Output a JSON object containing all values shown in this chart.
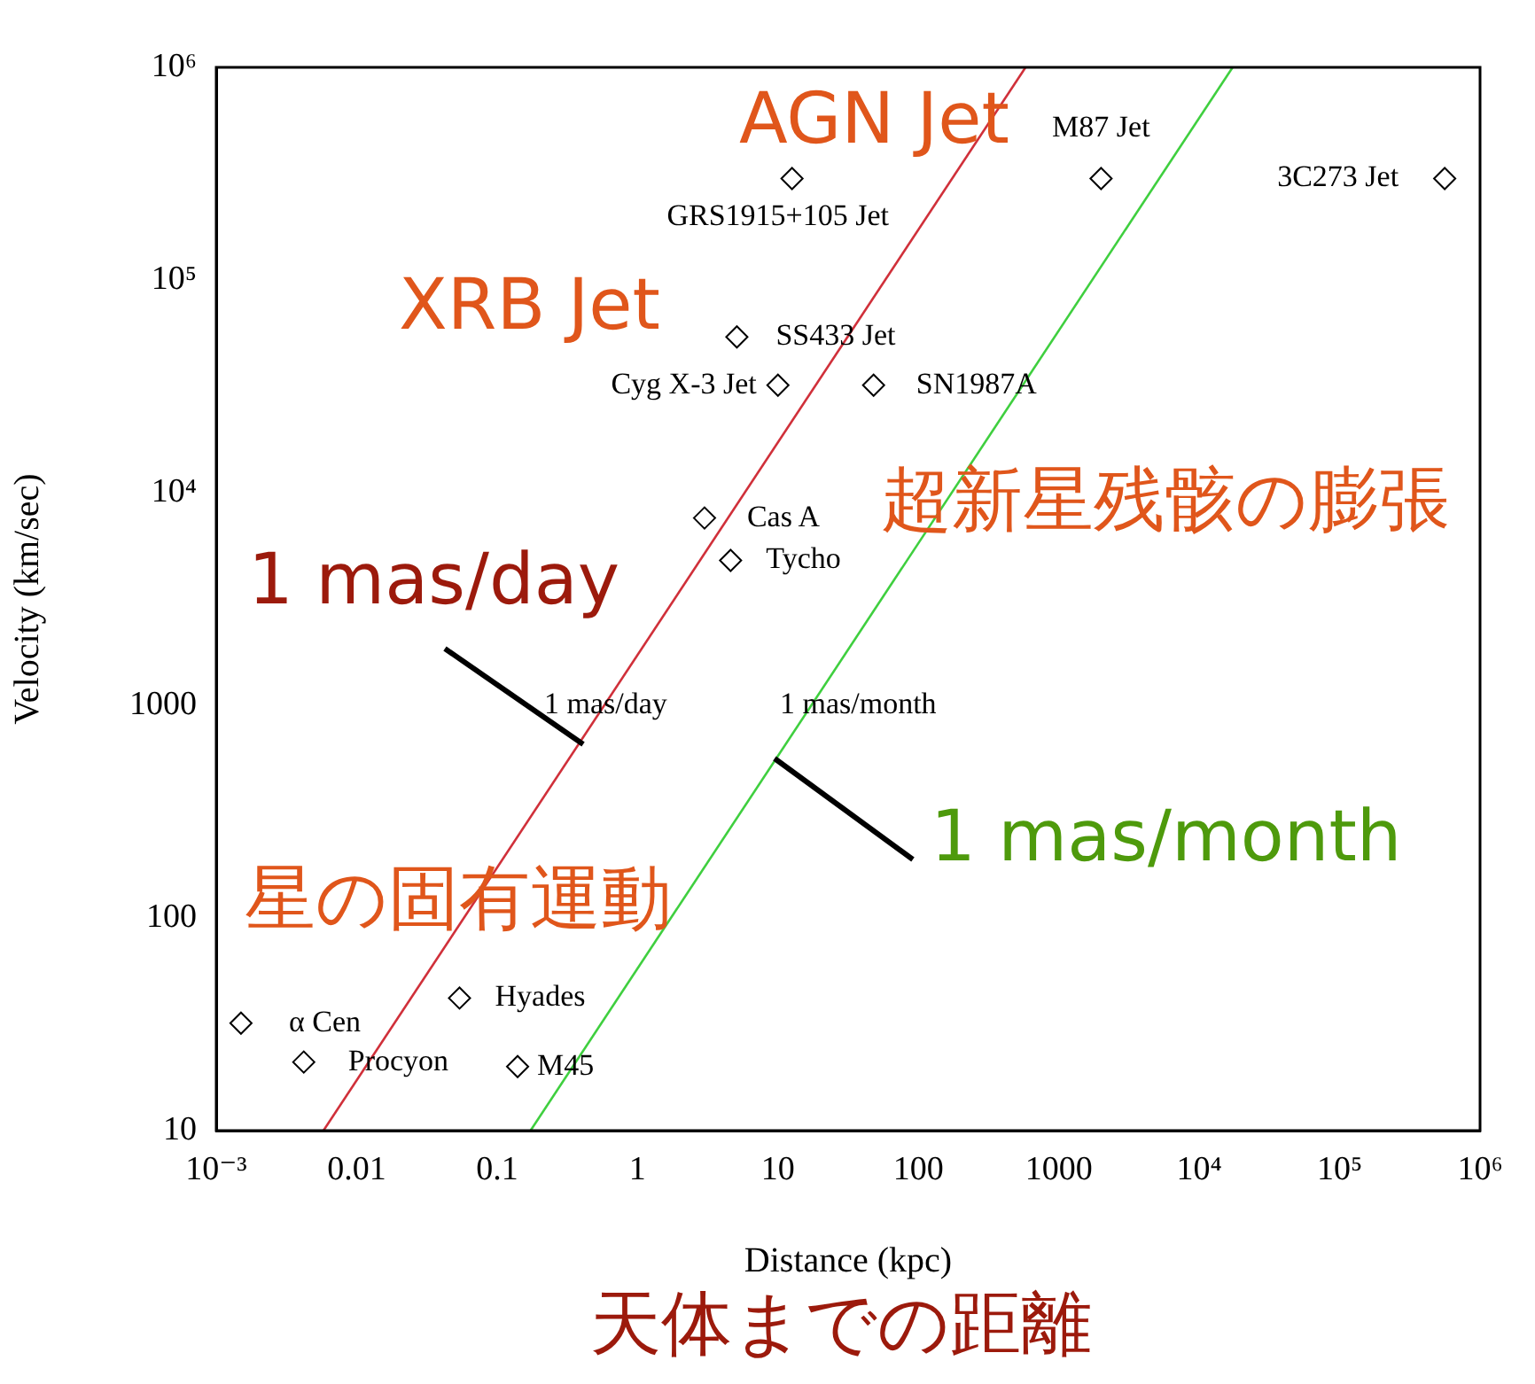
{
  "chart_data": {
    "type": "scatter",
    "xlabel": "Distance (kpc)",
    "ylabel": "Velocity (km/sec)",
    "log": "xy",
    "grid": false,
    "legend": false,
    "marker": "diamond",
    "xlim": [
      0.001,
      1000000
    ],
    "ylim": [
      10,
      1000000
    ],
    "xticks": [
      {
        "value": 0.001,
        "label": "10⁻³"
      },
      0.01,
      0.1,
      1,
      10,
      100,
      1000,
      {
        "value": 10000,
        "label": "10⁴"
      },
      {
        "value": 100000,
        "label": "10⁵"
      },
      {
        "value": 1000000,
        "label": "10⁶"
      }
    ],
    "yticks": [
      10,
      100,
      1000,
      {
        "value": 10000,
        "label": "10⁴"
      },
      {
        "value": 100000,
        "label": "10⁵"
      },
      {
        "value": 1000000,
        "label": "10⁶"
      }
    ],
    "series": [
      {
        "color": "#000000",
        "x": [
          0.0015,
          0.0042,
          0.054,
          0.14,
          3.0,
          4.6,
          5.1,
          10,
          48,
          12.6,
          2000,
          560000
        ],
        "values": [
          32,
          21,
          42,
          20,
          7600,
          4800,
          54000,
          32000,
          32000,
          300000,
          300000,
          300000
        ],
        "value_labels": [
          "α Cen",
          "Procyon",
          "Hyades",
          "M45",
          "Cas A",
          "Tycho",
          "SS433 Jet",
          "Cyg X-3 Jet",
          "SN1987A",
          "GRS1915+105 Jet",
          "M87 Jet",
          "3C273 Jet"
        ]
      },
      {
        "type": "line",
        "name": "1 mas/day",
        "color": "#d0303a",
        "marker": "none",
        "x": [
          0.0058,
          580
        ],
        "values": [
          10,
          1000000
        ]
      },
      {
        "type": "line",
        "name": "1 mas/month",
        "color": "#3fcf3f",
        "marker": "none",
        "x": [
          0.173,
          17300
        ],
        "values": [
          10,
          1000000
        ]
      }
    ],
    "annotations": [
      "AGN Jet",
      "XRB Jet",
      "超新星残骸の膨張",
      "星の固有運動",
      "天体までの距離"
    ]
  }
}
